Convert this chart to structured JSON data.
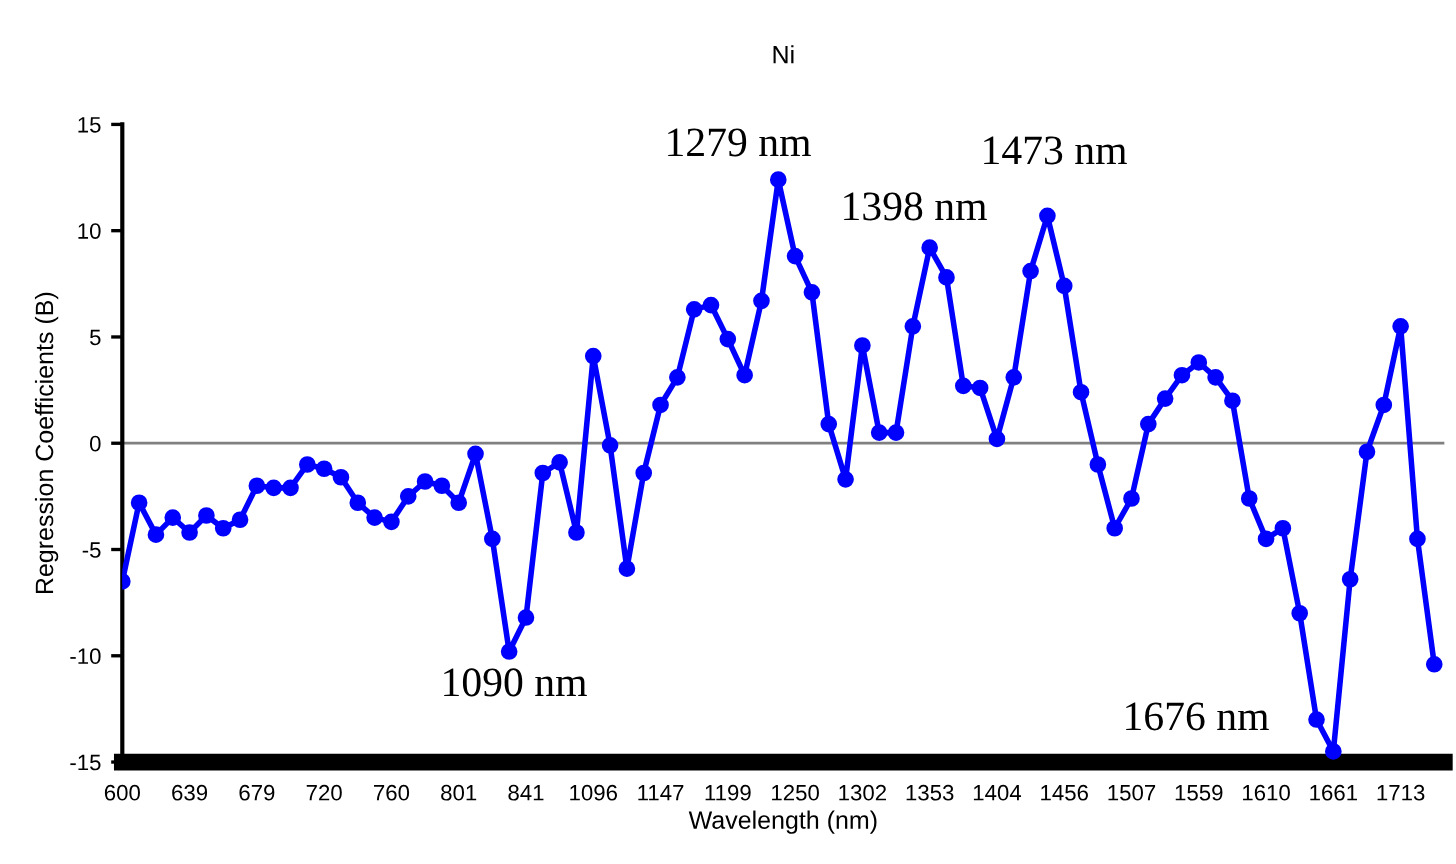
{
  "chart_data": {
    "type": "line",
    "title": "Ni",
    "xlabel": "Wavelength (nm)",
    "ylabel": "Regression Coefficients (B)",
    "categories": [
      "600",
      null,
      null,
      null,
      "639",
      null,
      null,
      null,
      "679",
      null,
      null,
      null,
      "720",
      null,
      null,
      null,
      "760",
      null,
      null,
      null,
      "801",
      null,
      null,
      null,
      "841",
      null,
      null,
      null,
      "1096",
      null,
      null,
      null,
      "1147",
      null,
      null,
      null,
      "1199",
      null,
      null,
      null,
      "1250",
      null,
      null,
      null,
      "1302",
      null,
      null,
      null,
      "1353",
      null,
      null,
      null,
      "1404",
      null,
      null,
      null,
      "1456",
      null,
      null,
      null,
      "1507",
      null,
      null,
      null,
      "1559",
      null,
      null,
      null,
      "1610",
      null,
      null,
      null,
      "1661",
      null,
      null,
      null,
      "1713",
      null,
      null
    ],
    "series": [
      {
        "color": "#0000ff",
        "values": [
          -6.5,
          -2.8,
          -4.3,
          -3.5,
          -4.2,
          -3.4,
          -4.0,
          -3.6,
          -2.0,
          -2.1,
          -2.1,
          -1.0,
          -1.2,
          -1.6,
          -2.8,
          -3.5,
          -3.7,
          -2.5,
          -1.8,
          -2.0,
          -2.8,
          -0.5,
          -4.5,
          -9.8,
          -8.2,
          -1.4,
          -0.9,
          -4.2,
          4.1,
          -0.1,
          -5.9,
          -1.4,
          1.8,
          3.1,
          6.3,
          6.5,
          4.9,
          3.2,
          6.7,
          12.4,
          8.8,
          7.1,
          0.9,
          -1.7,
          4.6,
          0.5,
          0.5,
          5.5,
          9.2,
          7.8,
          2.7,
          2.6,
          0.2,
          3.1,
          8.1,
          10.7,
          7.4,
          2.4,
          -1.0,
          -4.0,
          -2.6,
          0.9,
          2.1,
          3.2,
          3.8,
          3.1,
          2.0,
          -2.6,
          -4.5,
          -4.0,
          -8.0,
          -13.0,
          -14.5,
          -6.4,
          -0.4,
          1.8,
          5.5,
          -4.5,
          -10.4
        ]
      }
    ],
    "marker": "circle",
    "line_style": "solid",
    "ylim": [
      -15,
      15
    ],
    "yticks": [
      -15,
      -10,
      -5,
      0,
      5,
      10,
      15
    ],
    "grid": false,
    "legend": false,
    "ref_lines": [
      {
        "axis": "y",
        "value": 0,
        "color": "#808080"
      }
    ],
    "annotations": [
      "1090 nm",
      "1279 nm",
      "1398 nm",
      "1473 nm",
      "1676 nm"
    ]
  }
}
